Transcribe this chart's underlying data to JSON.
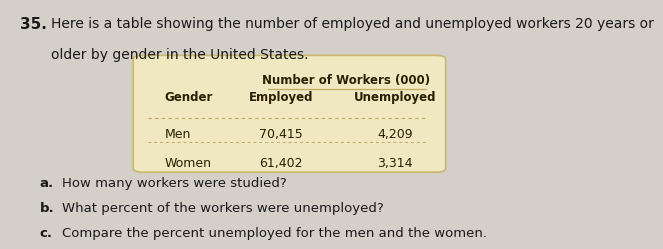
{
  "problem_number": "35.",
  "intro_text_line1": "Here is a table showing the number of employed and unemployed workers 20 years or",
  "intro_text_line2": "older by gender in the United States.",
  "table_header_span": "Number of Workers (000)",
  "col_headers": [
    "Gender",
    "Employed",
    "Unemployed"
  ],
  "rows": [
    [
      "Men",
      "70,415",
      "4,209"
    ],
    [
      "Women",
      "61,402",
      "3,314"
    ]
  ],
  "questions": [
    [
      "a.",
      "How many workers were studied?"
    ],
    [
      "b.",
      "What percent of the workers were unemployed?"
    ],
    [
      "c.",
      "Compare the percent unemployed for the men and the women."
    ]
  ],
  "page_bg": "#d4cfc8",
  "table_bg": "#f0e8c0",
  "table_border": "#c8b870",
  "text_color": "#2a2000",
  "separator_color": "#c0aa60"
}
